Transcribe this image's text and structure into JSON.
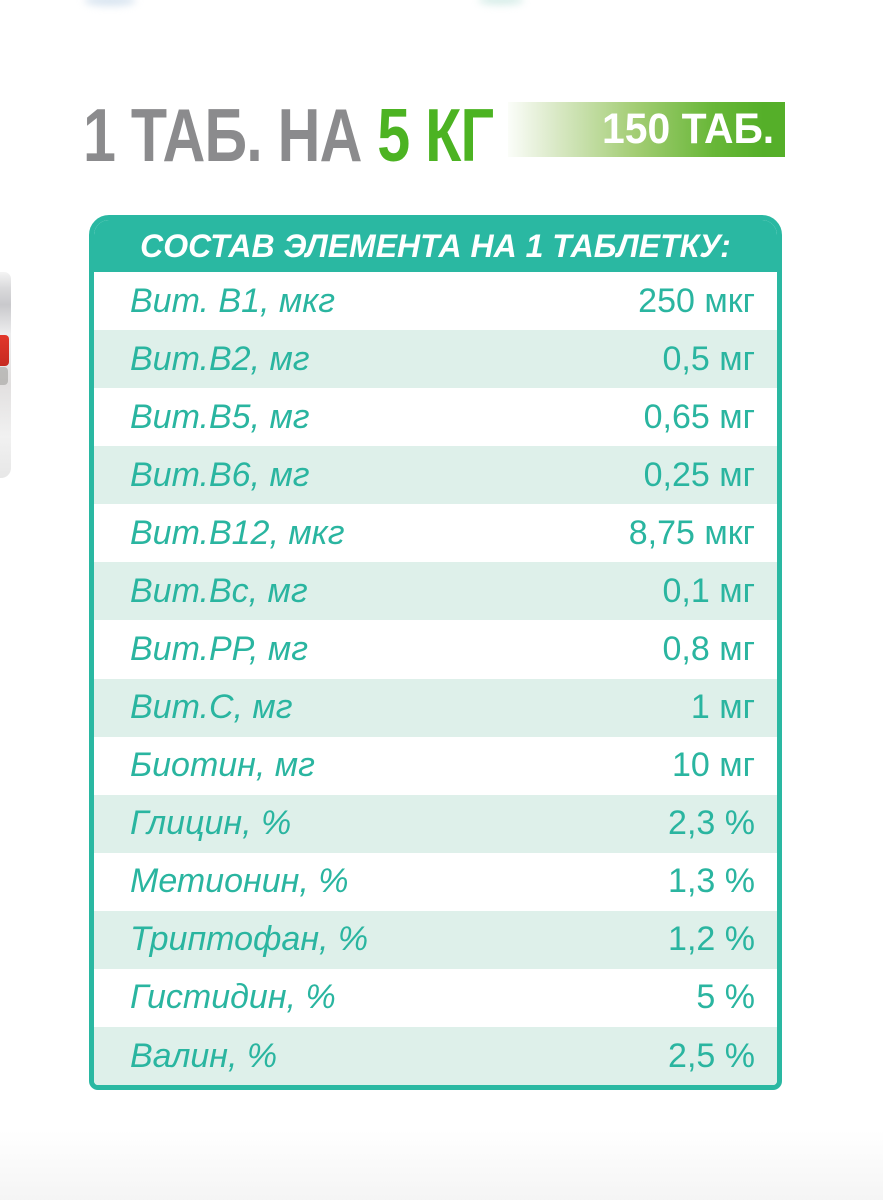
{
  "top_banner": {
    "dose_text_gray": "1 ТАБ. НА ",
    "dose_text_green": "5 КГ",
    "badge_label": "150 ТАБ."
  },
  "table": {
    "header": "СОСТАВ ЭЛЕМЕНТА НА 1 ТАБЛЕТКУ:",
    "rows": [
      {
        "label": "Вит. В1, мкг",
        "value": "250 мкг"
      },
      {
        "label": "Вит.В2, мг",
        "value": "0,5 мг"
      },
      {
        "label": "Вит.В5, мг",
        "value": "0,65 мг"
      },
      {
        "label": "Вит.В6, мг",
        "value": "0,25 мг"
      },
      {
        "label": "Вит.В12, мкг",
        "value": "8,75 мкг"
      },
      {
        "label": "Вит.Вс, мг",
        "value": "0,1 мг"
      },
      {
        "label": "Вит.РР, мг",
        "value": "0,8 мг"
      },
      {
        "label": "Вит.С, мг",
        "value": "1 мг"
      },
      {
        "label": "Биотин, мг",
        "value": "10 мг"
      },
      {
        "label": "Глицин, %",
        "value": "2,3 %"
      },
      {
        "label": "Метионин, %",
        "value": "1,3 %"
      },
      {
        "label": "Триптофан, %",
        "value": "1,2 %"
      },
      {
        "label": "Гистидин, %",
        "value": "5 %"
      },
      {
        "label": "Валин, %",
        "value": "2,5 %"
      }
    ]
  },
  "colors": {
    "teal": "#2ab8a2",
    "teal_text": "#2ab5a0",
    "mint_row": "#def0ea",
    "gray_title": "#8b8b8d",
    "green_title": "#4cb322",
    "badge_green": "#55af29",
    "badge_text": "#ffffff",
    "bottle_red": "#d93025"
  }
}
